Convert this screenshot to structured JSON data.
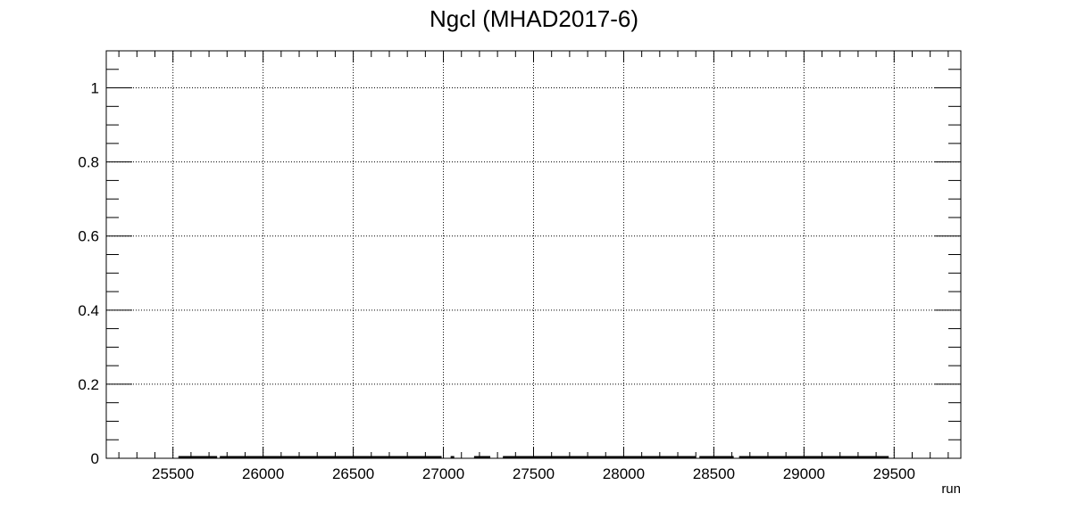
{
  "chart_data": {
    "type": "line",
    "title": "Ngcl (MHAD2017-6)",
    "xlabel": "run",
    "ylabel": "",
    "xlim": [
      25130,
      29870
    ],
    "ylim": [
      0,
      1.1
    ],
    "x_major_ticks": [
      25500,
      26000,
      26500,
      27000,
      27500,
      28000,
      28500,
      29000,
      29500
    ],
    "x_tick_labels": [
      "25500",
      "26000",
      "26500",
      "27000",
      "27500",
      "28000",
      "28500",
      "29000",
      "29500"
    ],
    "y_major_ticks": [
      0,
      0.2,
      0.4,
      0.6,
      0.8,
      1
    ],
    "y_tick_labels": [
      "0",
      "0.2",
      "0.4",
      "0.6",
      "0.8",
      "1"
    ],
    "grid": true,
    "series": [
      {
        "segments": [
          [
            25530,
            25745
          ],
          [
            25760,
            26990
          ],
          [
            27040,
            27060
          ],
          [
            27170,
            27260
          ],
          [
            27330,
            28400
          ],
          [
            28420,
            28610
          ],
          [
            28640,
            29470
          ]
        ],
        "value": 0
      }
    ]
  }
}
